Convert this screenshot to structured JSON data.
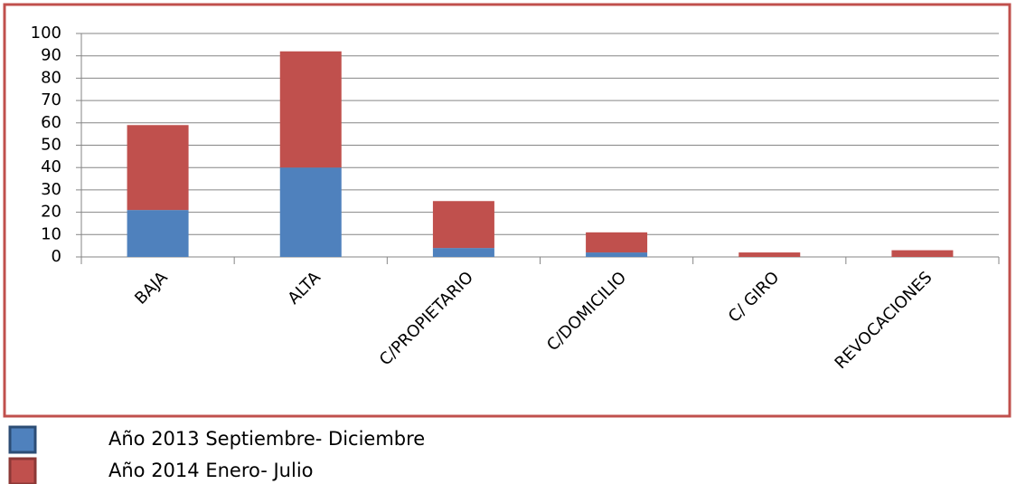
{
  "chart_data": {
    "type": "stacked_bar",
    "categories": [
      "BAJA",
      "ALTA",
      "C/PROPIETARIO",
      "C/DOMICILIO",
      "C/ GIRO",
      "REVOCACIONES"
    ],
    "series": [
      {
        "name": "Año 2013 Septiembre- Diciembre",
        "color": "#4f81bd",
        "values": [
          21,
          40,
          4,
          2,
          0,
          0
        ]
      },
      {
        "name": "Año 2014 Enero- Julio",
        "color": "#c0504d",
        "values": [
          38,
          52,
          21,
          9,
          2,
          3
        ]
      }
    ],
    "ylim": [
      0,
      100
    ],
    "yticks": [
      0,
      10,
      20,
      30,
      40,
      50,
      60,
      70,
      80,
      90,
      100
    ],
    "grid": true
  }
}
